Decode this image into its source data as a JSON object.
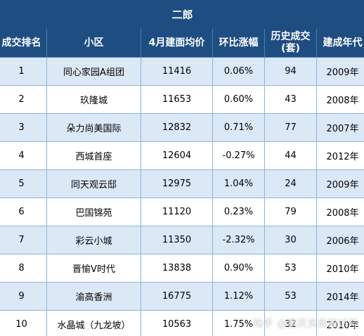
{
  "title": "二郎",
  "headers": [
    "成交排名",
    "小区",
    "4月建面均价",
    "环比涨幅",
    "历史成交(套)",
    "建成年代"
  ],
  "rows": [
    {
      "rank": "1",
      "name": "同心家园A组团",
      "price": "11416",
      "change": "0.06%",
      "deals": "94",
      "year": "2009年"
    },
    {
      "rank": "2",
      "name": "玖隆城",
      "price": "11653",
      "change": "0.60%",
      "deals": "43",
      "year": "2008年"
    },
    {
      "rank": "3",
      "name": "朵力尚美国际",
      "price": "12832",
      "change": "0.71%",
      "deals": "77",
      "year": "2007年"
    },
    {
      "rank": "4",
      "name": "西城首座",
      "price": "12604",
      "change": "-0.27%",
      "deals": "44",
      "year": "2012年"
    },
    {
      "rank": "5",
      "name": "同天观云邸",
      "price": "12975",
      "change": "1.04%",
      "deals": "24",
      "year": "2009年"
    },
    {
      "rank": "6",
      "name": "巴国锦苑",
      "price": "11120",
      "change": "0.23%",
      "deals": "79",
      "year": "2008年"
    },
    {
      "rank": "7",
      "name": "彩云小城",
      "price": "11350",
      "change": "-2.32%",
      "deals": "30",
      "year": "2006年"
    },
    {
      "rank": "8",
      "name": "晋愉V时代",
      "price": "13838",
      "change": "0.90%",
      "deals": "53",
      "year": "2010年"
    },
    {
      "rank": "9",
      "name": "渝高香洲",
      "price": "16775",
      "change": "1.12%",
      "deals": "53",
      "year": "2014年"
    },
    {
      "rank": "10",
      "name": "水晶城（九龙坡）",
      "price": "10563",
      "change": "1.75%",
      "deals": "32",
      "year": "2010年"
    }
  ],
  "watermark": "知乎 @重庆买房知识号",
  "colors": {
    "header_bg": "#1e4d82",
    "stripe": "#dbe8f6",
    "border": "#8eb4da"
  }
}
